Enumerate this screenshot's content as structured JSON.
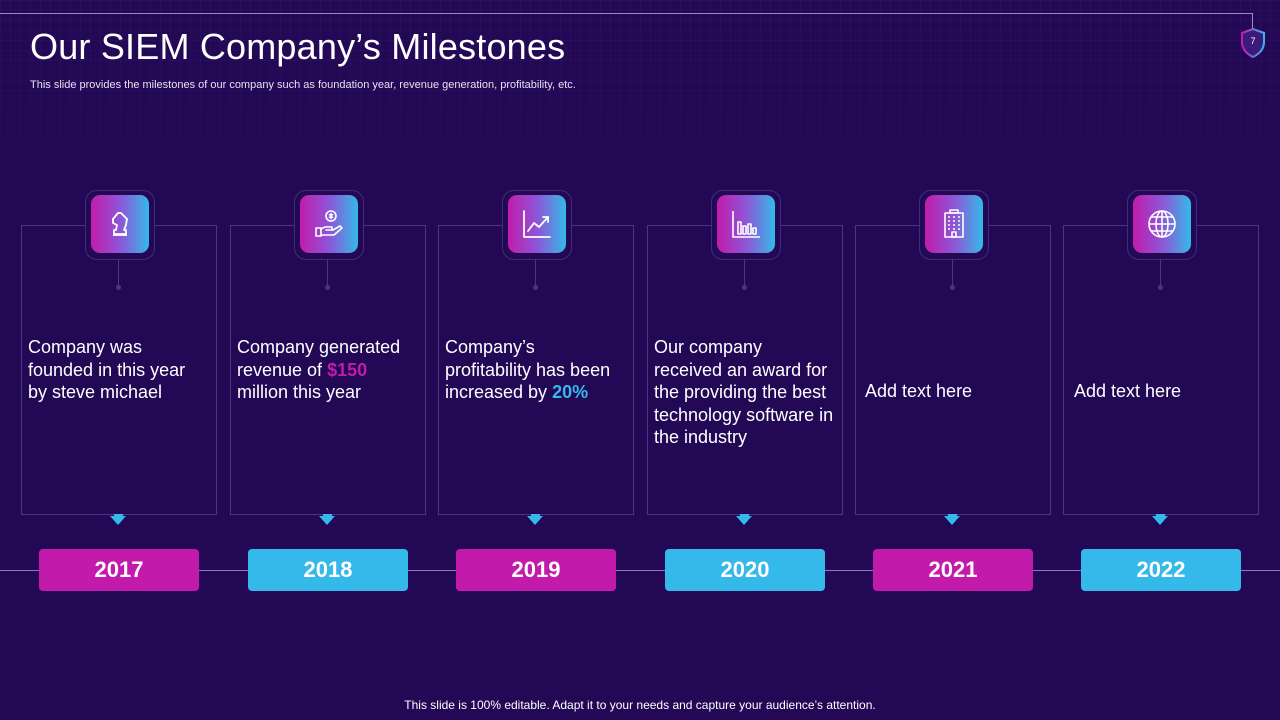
{
  "slide": {
    "title": "Our SIEM Company’s Milestones",
    "subtitle": "This slide provides the milestones of our company such as foundation year, revenue generation, profitability, etc.",
    "page_number": "7",
    "footer": "This slide is 100% editable. Adapt it to your needs and capture your audience’s attention."
  },
  "colors": {
    "background": "#230856",
    "magenta": "#c21bab",
    "blue": "#35b8ea"
  },
  "milestones": [
    {
      "year": "2017",
      "icon": "chess-knight-icon",
      "year_color": "#c21bab",
      "text_a": "Company was founded in this year by steve michael",
      "highlight": "",
      "text_b": ""
    },
    {
      "year": "2018",
      "icon": "money-hand-icon",
      "year_color": "#35b8ea",
      "text_a": "Company generated revenue of ",
      "highlight": "$150",
      "text_b": " million this year"
    },
    {
      "year": "2019",
      "icon": "line-chart-icon",
      "year_color": "#c21bab",
      "text_a": "Company’s profitability has been increased by ",
      "highlight": "20%",
      "text_b": ""
    },
    {
      "year": "2020",
      "icon": "bar-chart-icon",
      "year_color": "#35b8ea",
      "text_a": "Our company received an award for the providing the best technology software in the industry",
      "highlight": "",
      "text_b": ""
    },
    {
      "year": "2021",
      "icon": "building-icon",
      "year_color": "#c21bab",
      "text_a": "Add text here",
      "highlight": "",
      "text_b": ""
    },
    {
      "year": "2022",
      "icon": "globe-icon",
      "year_color": "#35b8ea",
      "text_a": "Add text here",
      "highlight": "",
      "text_b": ""
    }
  ]
}
